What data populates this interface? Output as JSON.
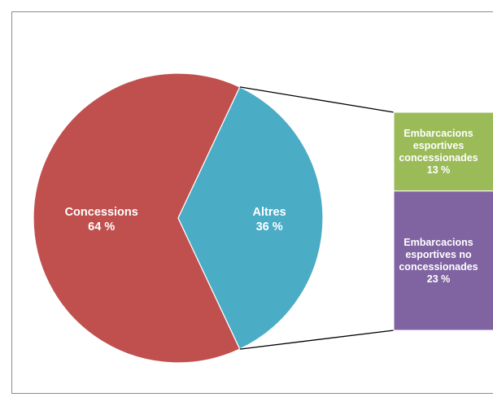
{
  "chart_data": {
    "type": "pie",
    "subtype": "bar-of-pie",
    "title": "",
    "slices": [
      {
        "label": "Concessions",
        "value": 64,
        "value_label": "64 %",
        "color": "#c0504d"
      },
      {
        "label": "Altres",
        "value": 36,
        "value_label": "36 %",
        "color": "#4bacc6"
      }
    ],
    "breakdown": {
      "of": "Altres",
      "segments": [
        {
          "label_lines": [
            "Embarcacions",
            "esportives",
            "concessionades"
          ],
          "value": 13,
          "value_label": "13 %",
          "color": "#9bbb59"
        },
        {
          "label_lines": [
            "Embarcacions",
            "esportives no",
            "concessionades"
          ],
          "value": 23,
          "value_label": "23 %",
          "color": "#8064a2"
        }
      ]
    },
    "legend": "none"
  }
}
